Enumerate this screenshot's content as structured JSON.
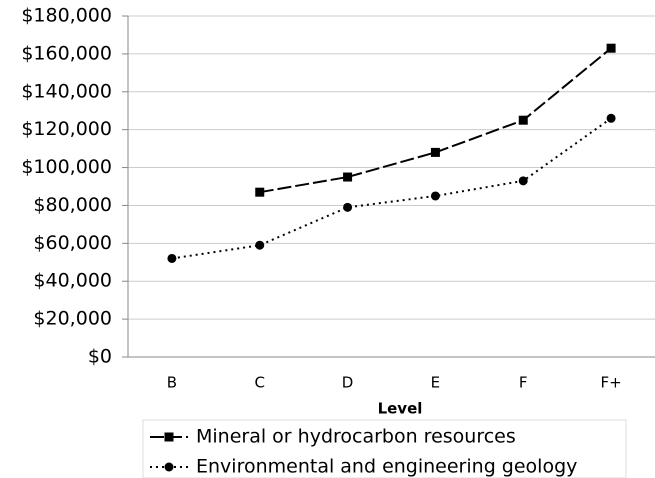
{
  "chart_data": {
    "type": "line",
    "x_label": "Level",
    "categories": [
      "B",
      "C",
      "D",
      "E",
      "F",
      "F+"
    ],
    "series": [
      {
        "name": "Mineral or hydrocarbon resources",
        "color": "#000000",
        "dash": "dashed",
        "marker": "square",
        "values": [
          null,
          87000,
          95000,
          108000,
          125000,
          163000
        ]
      },
      {
        "name": "Environmental and engineering geology",
        "color": "#000000",
        "dash": "dotted",
        "marker": "circle",
        "values": [
          52000,
          59000,
          79000,
          85000,
          93000,
          126000
        ]
      }
    ],
    "ylim": [
      0,
      180000
    ],
    "yticks": [
      {
        "value": 0,
        "label": "$0"
      },
      {
        "value": 20000,
        "label": "$20,000"
      },
      {
        "value": 40000,
        "label": "$40,000"
      },
      {
        "value": 60000,
        "label": "$60,000"
      },
      {
        "value": 80000,
        "label": "$80,000"
      },
      {
        "value": 100000,
        "label": "$100,000"
      },
      {
        "value": 120000,
        "label": "$120,000"
      },
      {
        "value": 140000,
        "label": "$140,000"
      },
      {
        "value": 160000,
        "label": "$160,000"
      },
      {
        "value": 180000,
        "label": "$180,000"
      }
    ],
    "grid": true,
    "legend": "bottom"
  }
}
